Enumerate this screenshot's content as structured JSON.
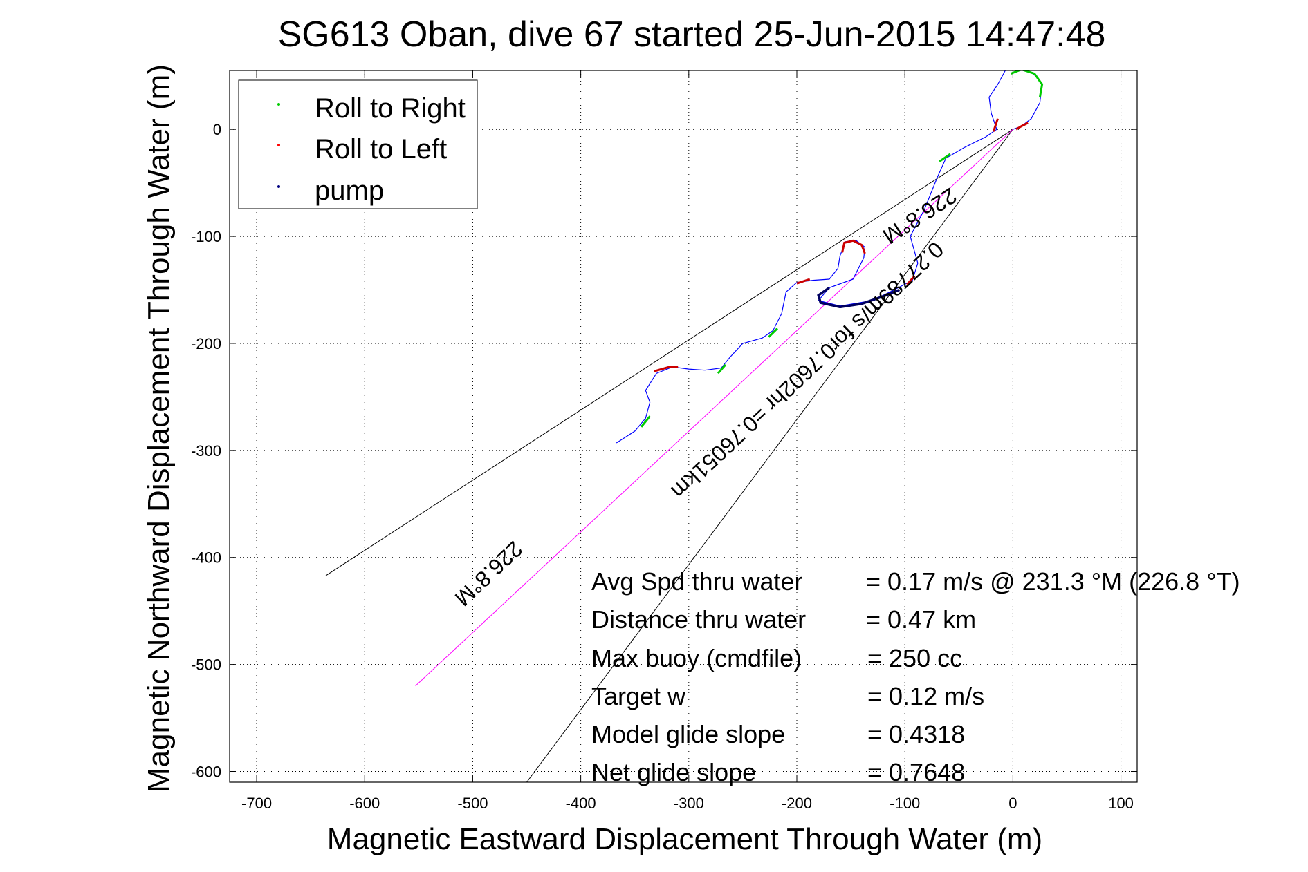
{
  "chart_data": {
    "type": "line",
    "title": "SG613 Oban, dive 67 started 25-Jun-2015 14:47:48",
    "xlabel": "Magnetic Eastward Displacement Through Water (m)",
    "ylabel": "Magnetic Northward Displacement Through Water (m)",
    "xlim": [
      -725,
      115
    ],
    "ylim": [
      -610,
      55
    ],
    "xticks": [
      -700,
      -600,
      -500,
      -400,
      -300,
      -200,
      -100,
      0,
      100
    ],
    "yticks": [
      0,
      -100,
      -200,
      -300,
      -400,
      -500,
      -600
    ],
    "xtick_labels": [
      "-700",
      "-600",
      "-500",
      "-400",
      "-300",
      "-200",
      "-100",
      "0",
      "100"
    ],
    "ytick_labels": [
      "0",
      "-100",
      "-200",
      "-300",
      "-400",
      "-500",
      "-600"
    ],
    "grid": true,
    "legend_position": "top-left",
    "legend": [
      {
        "label": "Roll to Right",
        "color": "#00cc00"
      },
      {
        "label": "Roll to Left",
        "color": "#ff0000"
      },
      {
        "label": "pump",
        "color": "#000080"
      }
    ],
    "track": {
      "color": "#0000ff",
      "points": [
        [
          -367,
          -293
        ],
        [
          -350,
          -282
        ],
        [
          -340,
          -270
        ],
        [
          -336,
          -255
        ],
        [
          -340,
          -244
        ],
        [
          -330,
          -228
        ],
        [
          -315,
          -222
        ],
        [
          -300,
          -224
        ],
        [
          -285,
          -225
        ],
        [
          -270,
          -223
        ],
        [
          -262,
          -213
        ],
        [
          -250,
          -200
        ],
        [
          -232,
          -195
        ],
        [
          -222,
          -188
        ],
        [
          -214,
          -172
        ],
        [
          -210,
          -152
        ],
        [
          -200,
          -143
        ],
        [
          -185,
          -141
        ],
        [
          -170,
          -140
        ],
        [
          -162,
          -130
        ],
        [
          -160,
          -118
        ],
        [
          -155,
          -105
        ],
        [
          -145,
          -104
        ],
        [
          -137,
          -110
        ],
        [
          -138,
          -120
        ],
        [
          -148,
          -140
        ],
        [
          -170,
          -148
        ],
        [
          -180,
          -160
        ],
        [
          -160,
          -165
        ],
        [
          -130,
          -160
        ],
        [
          -110,
          -150
        ],
        [
          -93,
          -141
        ],
        [
          -88,
          -125
        ],
        [
          -95,
          -100
        ],
        [
          -82,
          -75
        ],
        [
          -70,
          -45
        ],
        [
          -62,
          -27
        ],
        [
          -45,
          -17
        ],
        [
          -25,
          -7
        ],
        [
          -15,
          0
        ],
        [
          -20,
          15
        ],
        [
          -22,
          30
        ],
        [
          -14,
          42
        ],
        [
          -7,
          55
        ],
        [
          5,
          56
        ],
        [
          18,
          53
        ],
        [
          27,
          43
        ],
        [
          25,
          25
        ],
        [
          17,
          10
        ],
        [
          8,
          3
        ],
        [
          0,
          0
        ]
      ]
    },
    "segments_right": [
      {
        "points": [
          [
            -344,
            -278
          ],
          [
            -336,
            -268
          ]
        ],
        "color": "#00cc00"
      },
      {
        "points": [
          [
            -273,
            -228
          ],
          [
            -266,
            -220
          ]
        ],
        "color": "#00cc00"
      },
      {
        "points": [
          [
            -226,
            -194
          ],
          [
            -218,
            -186
          ]
        ],
        "color": "#00cc00"
      },
      {
        "points": [
          [
            -68,
            -30
          ],
          [
            -58,
            -23
          ]
        ],
        "color": "#00cc00"
      },
      {
        "points": [
          [
            -2,
            52
          ],
          [
            8,
            56
          ],
          [
            20,
            52
          ],
          [
            27,
            42
          ],
          [
            25,
            30
          ]
        ],
        "color": "#00cc00"
      }
    ],
    "segments_left": [
      {
        "points": [
          [
            -332,
            -226
          ],
          [
            -318,
            -222
          ],
          [
            -310,
            -222
          ]
        ],
        "color": "#cc0000"
      },
      {
        "points": [
          [
            -200,
            -144
          ],
          [
            -188,
            -140
          ]
        ],
        "color": "#cc0000"
      },
      {
        "points": [
          [
            -158,
            -115
          ],
          [
            -156,
            -106
          ],
          [
            -148,
            -104
          ],
          [
            -140,
            -108
          ],
          [
            -137,
            -116
          ]
        ],
        "color": "#cc0000"
      },
      {
        "points": [
          [
            -98,
            -145
          ],
          [
            -91,
            -137
          ]
        ],
        "color": "#cc0000"
      },
      {
        "points": [
          [
            -18,
            -2
          ],
          [
            -16,
            4
          ],
          [
            -14,
            10
          ]
        ],
        "color": "#cc0000"
      },
      {
        "points": [
          [
            3,
            0
          ],
          [
            8,
            3
          ],
          [
            14,
            6
          ]
        ],
        "color": "#cc0000"
      }
    ],
    "segments_pump": [
      {
        "points": [
          [
            -170,
            -148
          ],
          [
            -180,
            -155
          ],
          [
            -178,
            -162
          ],
          [
            -160,
            -166
          ],
          [
            -140,
            -163
          ],
          [
            -120,
            -156
          ],
          [
            -105,
            -150
          ]
        ],
        "color": "#000060"
      }
    ],
    "rays": [
      {
        "from": [
          0,
          0
        ],
        "to": [
          -636,
          -417
        ],
        "color": "#000000"
      },
      {
        "from": [
          0,
          0
        ],
        "to": [
          -450,
          -610
        ],
        "color": "#000000"
      },
      {
        "from": [
          0,
          0
        ],
        "to": [
          -553,
          -520
        ],
        "color": "#ff00ff"
      }
    ],
    "ray_labels": [
      {
        "text": "226.8°M",
        "x": -90,
        "y": -75,
        "angle_deg": 146.9
      },
      {
        "text": "0.27789m/s for0.7602hr =0.76051km",
        "x": -195,
        "y": -220,
        "angle_deg": 136.8
      },
      {
        "text": "226.8°M",
        "x": -490,
        "y": -410,
        "angle_deg": 136.8
      }
    ],
    "annotations": [
      {
        "label": "Avg Spd thru water",
        "value": "=  0.17 m/s @ 231.3  °M (226.8 °T)"
      },
      {
        "label": "Distance thru water",
        "value": "=  0.47 km"
      },
      {
        "label": "Max buoy (cmdfile)",
        "value": "= 250 cc"
      },
      {
        "label": "Target w",
        "value": "= 0.12 m/s"
      },
      {
        "label": "Model glide slope",
        "value": "= 0.4318"
      },
      {
        "label": "Net glide slope",
        "value": "= 0.7648"
      }
    ]
  }
}
